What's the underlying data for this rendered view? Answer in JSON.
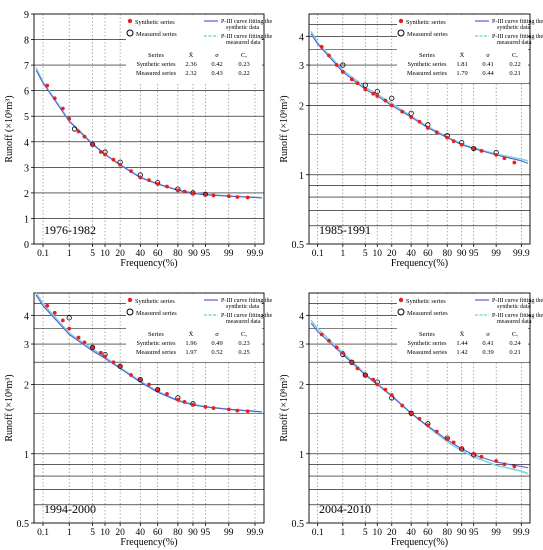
{
  "figure": {
    "xlabel": "Frequency(%)",
    "ylabel": "Runoff (×10⁸m³)",
    "x_ticks": [
      "0.1",
      "1",
      "5",
      "10",
      "20",
      "40",
      "60",
      "80",
      "90",
      "95",
      "99",
      "99.9"
    ],
    "legend": {
      "synthetic_points": "Synthetic series",
      "measured_points": "Measured series",
      "synthetic_curve_line1": "P-III curve fitting the",
      "synthetic_curve_line2": "synthetic data",
      "measured_curve_line1": "P-III curve fitting the",
      "measured_curve_line2": "measured data"
    },
    "stats_header": [
      "Series",
      "X̄",
      "σ",
      "Cᵥ"
    ],
    "colors": {
      "synthetic_points": "#e8201e",
      "synthetic_curve": "#5b5bd6",
      "measured_points": "#000000",
      "measured_curve": "#7fd6e0",
      "grid": "#000000",
      "dotted_grid": "#888888"
    }
  },
  "chart_data": [
    {
      "type": "scatter",
      "period": "1976-1982",
      "x_scale": "normal-probability",
      "y_scale": "linear",
      "ylim": [
        0,
        9
      ],
      "y_ticks": [
        "0",
        "1",
        "2",
        "3",
        "4",
        "5",
        "6",
        "7",
        "8",
        "9"
      ],
      "stats": [
        {
          "series": "Synthetic series",
          "mean": "2.36",
          "sigma": "0.42",
          "cv": "0.23"
        },
        {
          "series": "Measured series",
          "mean": "2.32",
          "sigma": "0.43",
          "cv": "0.22"
        }
      ],
      "synthetic_curve": {
        "x": [
          0.05,
          0.1,
          1,
          5,
          10,
          20,
          40,
          60,
          80,
          90,
          95,
          99,
          99.9,
          99.95
        ],
        "y": [
          6.8,
          6.3,
          4.8,
          3.9,
          3.5,
          3.1,
          2.6,
          2.35,
          2.1,
          1.98,
          1.93,
          1.87,
          1.82,
          1.8
        ]
      },
      "measured_curve": {
        "x": [
          0.05,
          0.1,
          1,
          5,
          10,
          20,
          40,
          60,
          80,
          90,
          95,
          99,
          99.9,
          99.95
        ],
        "y": [
          6.9,
          6.35,
          4.82,
          3.92,
          3.52,
          3.1,
          2.62,
          2.34,
          2.12,
          2.0,
          1.94,
          1.88,
          1.83,
          1.81
        ]
      },
      "synthetic_points": {
        "x": [
          0.15,
          0.3,
          0.6,
          1,
          2,
          3,
          5,
          8,
          10,
          15,
          20,
          30,
          40,
          50,
          60,
          70,
          80,
          85,
          90,
          95,
          97,
          99,
          99.5,
          99.8
        ],
        "y": [
          6.2,
          5.7,
          5.3,
          4.9,
          4.4,
          4.2,
          3.9,
          3.6,
          3.5,
          3.3,
          3.1,
          2.85,
          2.6,
          2.5,
          2.35,
          2.25,
          2.1,
          2.05,
          1.98,
          1.93,
          1.9,
          1.87,
          1.84,
          1.82
        ]
      },
      "measured_points": {
        "x": [
          1.5,
          5,
          10,
          20,
          40,
          60,
          80,
          90,
          95
        ],
        "y": [
          4.5,
          3.9,
          3.6,
          3.2,
          2.7,
          2.4,
          2.15,
          2.0,
          1.95
        ]
      }
    },
    {
      "type": "scatter",
      "period": "1985-1991",
      "x_scale": "normal-probability",
      "y_scale": "log",
      "ylim": [
        0.5,
        5
      ],
      "y_ticks": [
        "0.5",
        "1",
        "2",
        "3",
        "4"
      ],
      "stats": [
        {
          "series": "Synthetic series",
          "mean": "1.81",
          "sigma": "0.41",
          "cv": "0.22"
        },
        {
          "series": "Measured series",
          "mean": "1.79",
          "sigma": "0.44",
          "cv": "0.21"
        }
      ],
      "synthetic_curve": {
        "x": [
          0.05,
          0.1,
          1,
          5,
          10,
          20,
          40,
          60,
          80,
          90,
          95,
          99,
          99.9,
          99.95
        ],
        "y": [
          4.1,
          3.7,
          2.8,
          2.35,
          2.2,
          2.0,
          1.78,
          1.6,
          1.45,
          1.35,
          1.3,
          1.22,
          1.15,
          1.12
        ]
      },
      "measured_curve": {
        "x": [
          0.05,
          0.1,
          1,
          5,
          10,
          20,
          40,
          60,
          80,
          90,
          95,
          99,
          99.9,
          99.95
        ],
        "y": [
          4.2,
          3.75,
          2.85,
          2.4,
          2.24,
          2.04,
          1.8,
          1.62,
          1.46,
          1.36,
          1.31,
          1.23,
          1.17,
          1.15
        ]
      },
      "synthetic_points": {
        "x": [
          0.15,
          0.3,
          0.6,
          1,
          2,
          3,
          5,
          8,
          10,
          15,
          20,
          30,
          40,
          50,
          60,
          70,
          80,
          85,
          90,
          95,
          97,
          99,
          99.5,
          99.8
        ],
        "y": [
          3.6,
          3.3,
          3.0,
          2.8,
          2.6,
          2.5,
          2.35,
          2.25,
          2.2,
          2.1,
          2.0,
          1.88,
          1.78,
          1.7,
          1.6,
          1.53,
          1.45,
          1.4,
          1.35,
          1.3,
          1.27,
          1.22,
          1.18,
          1.13
        ]
      },
      "measured_points": {
        "x": [
          1,
          5,
          10,
          20,
          40,
          60,
          80,
          90,
          95,
          99
        ],
        "y": [
          3.0,
          2.45,
          2.3,
          2.15,
          1.85,
          1.65,
          1.48,
          1.38,
          1.3,
          1.25
        ]
      }
    },
    {
      "type": "scatter",
      "period": "1994-2000",
      "x_scale": "normal-probability",
      "y_scale": "log",
      "ylim": [
        0.5,
        5
      ],
      "y_ticks": [
        "0.5",
        "1",
        "2",
        "3",
        "4"
      ],
      "stats": [
        {
          "series": "Synthetic series",
          "mean": "1.96",
          "sigma": "0.49",
          "cv": "0.23"
        },
        {
          "series": "Measured series",
          "mean": "1.97",
          "sigma": "0.52",
          "cv": "0.25"
        }
      ],
      "synthetic_curve": {
        "x": [
          0.05,
          0.1,
          1,
          5,
          10,
          20,
          40,
          60,
          80,
          90,
          95,
          99,
          99.9,
          99.95
        ],
        "y": [
          4.9,
          4.4,
          3.3,
          2.8,
          2.6,
          2.35,
          2.05,
          1.85,
          1.7,
          1.63,
          1.6,
          1.56,
          1.53,
          1.52
        ]
      },
      "measured_curve": {
        "x": [
          0.05,
          0.1,
          1,
          5,
          10,
          20,
          40,
          60,
          80,
          90,
          95,
          99,
          99.9,
          99.95
        ],
        "y": [
          5.0,
          4.5,
          3.35,
          2.85,
          2.63,
          2.37,
          2.07,
          1.87,
          1.71,
          1.64,
          1.6,
          1.56,
          1.53,
          1.52
        ]
      },
      "synthetic_points": {
        "x": [
          0.15,
          0.3,
          0.6,
          1,
          2,
          3,
          5,
          8,
          10,
          15,
          20,
          30,
          40,
          50,
          60,
          70,
          80,
          85,
          90,
          95,
          97,
          99,
          99.5,
          99.8
        ],
        "y": [
          4.4,
          4.1,
          3.8,
          3.5,
          3.2,
          3.05,
          2.9,
          2.75,
          2.65,
          2.5,
          2.4,
          2.2,
          2.1,
          2.0,
          1.9,
          1.82,
          1.72,
          1.68,
          1.63,
          1.6,
          1.58,
          1.56,
          1.54,
          1.53
        ]
      },
      "measured_points": {
        "x": [
          1,
          5,
          10,
          20,
          40,
          60,
          80,
          90
        ],
        "y": [
          3.9,
          2.9,
          2.7,
          2.4,
          2.1,
          1.9,
          1.75,
          1.65
        ]
      }
    },
    {
      "type": "scatter",
      "period": "2004-2010",
      "x_scale": "normal-probability",
      "y_scale": "log",
      "ylim": [
        0.5,
        5
      ],
      "y_ticks": [
        "0.5",
        "1",
        "2",
        "3",
        "4"
      ],
      "stats": [
        {
          "series": "Synthetic series",
          "mean": "1.44",
          "sigma": "0.41",
          "cv": "0.24"
        },
        {
          "series": "Measured series",
          "mean": "1.42",
          "sigma": "0.39",
          "cv": "0.21"
        }
      ],
      "synthetic_curve": {
        "x": [
          0.05,
          0.1,
          1,
          5,
          10,
          20,
          40,
          60,
          80,
          90,
          95,
          99,
          99.9,
          99.95
        ],
        "y": [
          3.7,
          3.4,
          2.7,
          2.2,
          2.0,
          1.78,
          1.5,
          1.32,
          1.15,
          1.05,
          0.99,
          0.92,
          0.88,
          0.87
        ]
      },
      "measured_curve": {
        "x": [
          0.05,
          0.1,
          1,
          5,
          10,
          20,
          40,
          60,
          80,
          90,
          95,
          99,
          99.9,
          99.95
        ],
        "y": [
          3.8,
          3.5,
          2.75,
          2.22,
          2.02,
          1.79,
          1.5,
          1.31,
          1.13,
          1.03,
          0.97,
          0.89,
          0.84,
          0.82
        ]
      },
      "synthetic_points": {
        "x": [
          0.15,
          0.3,
          0.6,
          1,
          2,
          3,
          5,
          8,
          10,
          15,
          20,
          30,
          40,
          50,
          60,
          70,
          80,
          85,
          90,
          95,
          97,
          99,
          99.5,
          99.8
        ],
        "y": [
          3.3,
          3.1,
          2.9,
          2.75,
          2.5,
          2.35,
          2.2,
          2.1,
          2.0,
          1.9,
          1.8,
          1.62,
          1.5,
          1.42,
          1.33,
          1.25,
          1.16,
          1.12,
          1.06,
          1.0,
          0.97,
          0.93,
          0.9,
          0.88
        ]
      },
      "measured_points": {
        "x": [
          1,
          2,
          5,
          10,
          20,
          40,
          60,
          80,
          90,
          95
        ],
        "y": [
          2.7,
          2.5,
          2.2,
          2.05,
          1.75,
          1.5,
          1.35,
          1.17,
          1.05,
          0.99
        ]
      }
    }
  ]
}
